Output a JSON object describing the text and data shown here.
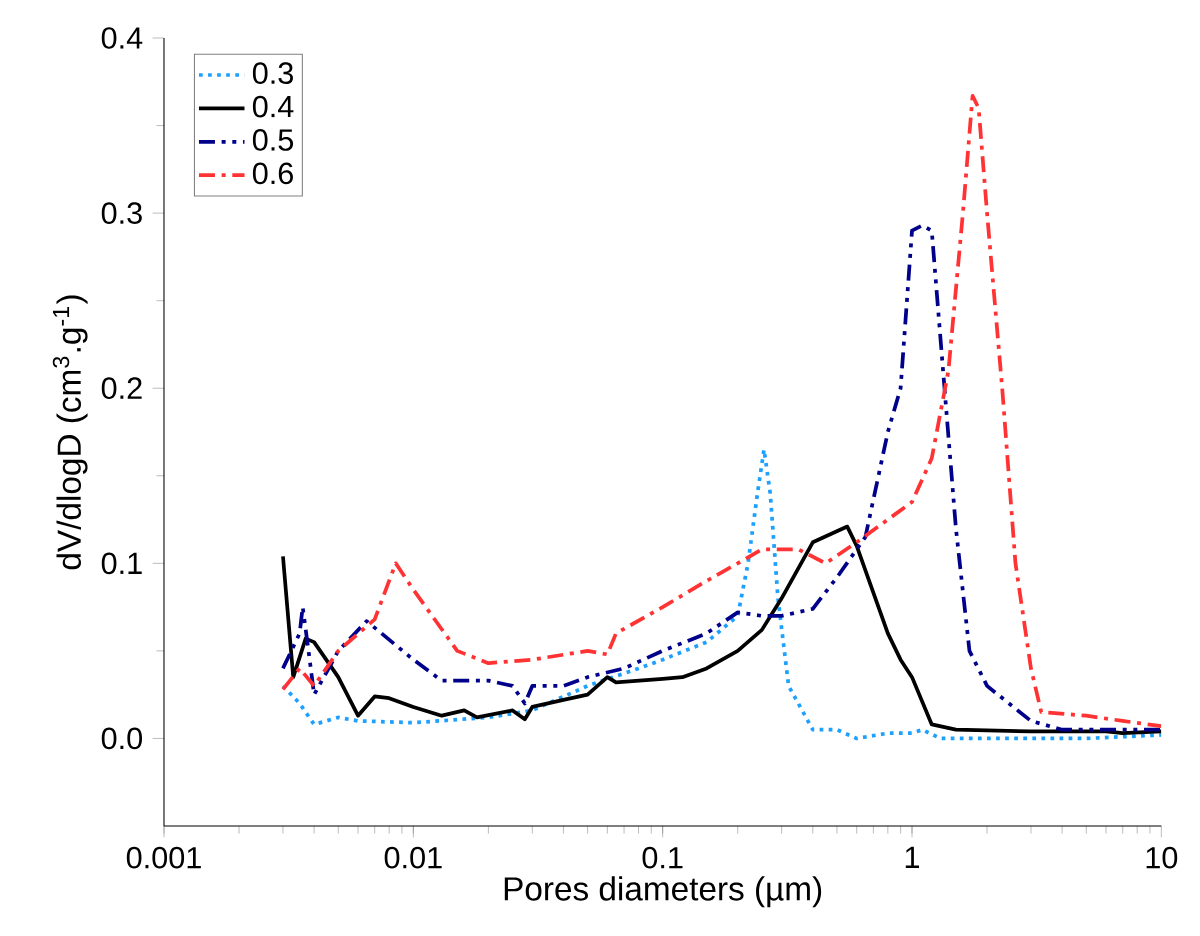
{
  "chart_data": {
    "type": "line",
    "xlabel": "Pores diameters (µm)",
    "ylabel": "dV/dlogD (cm$^{3}$.g$^{-1}$)",
    "log": "x",
    "xlim": [
      0.001,
      10
    ],
    "xticks": [
      0.001,
      0.01,
      0.1,
      1,
      10
    ],
    "ylim": [
      -0.05,
      0.4
    ],
    "yticks": [
      {
        "value": 0,
        "label": "0.0"
      },
      0.1,
      0.2,
      0.3,
      0.4
    ],
    "grid": false,
    "legend": "top left",
    "marker": "none",
    "series": [
      {
        "name": "0.3",
        "color": "#1ea0ff",
        "line_style": "dotted",
        "x": [
          0.003,
          0.0035,
          0.004,
          0.005,
          0.006,
          0.01,
          0.02,
          0.03,
          0.05,
          0.08,
          0.1,
          0.15,
          0.2,
          0.22,
          0.24,
          0.255,
          0.27,
          0.29,
          0.32,
          0.4,
          0.5,
          0.6,
          0.8,
          1.0,
          1.1,
          1.3,
          2,
          5,
          10
        ],
        "values": [
          0.03,
          0.02,
          0.008,
          0.012,
          0.01,
          0.009,
          0.012,
          0.016,
          0.03,
          0.04,
          0.045,
          0.055,
          0.07,
          0.1,
          0.14,
          0.165,
          0.14,
          0.08,
          0.03,
          0.005,
          0.005,
          0.0,
          0.003,
          0.003,
          0.005,
          0.0,
          0.0,
          0.0,
          0.002
        ]
      },
      {
        "name": "0.4",
        "color": "#000000",
        "line_style": "solid",
        "x": [
          0.003,
          0.0033,
          0.0037,
          0.004,
          0.005,
          0.006,
          0.007,
          0.008,
          0.01,
          0.013,
          0.016,
          0.018,
          0.025,
          0.028,
          0.03,
          0.04,
          0.05,
          0.06,
          0.065,
          0.1,
          0.12,
          0.15,
          0.2,
          0.25,
          0.3,
          0.4,
          0.55,
          0.6,
          0.8,
          0.9,
          1.0,
          1.2,
          1.5,
          3,
          6,
          7,
          10
        ],
        "values": [
          0.104,
          0.035,
          0.057,
          0.055,
          0.035,
          0.013,
          0.024,
          0.023,
          0.018,
          0.013,
          0.016,
          0.012,
          0.016,
          0.011,
          0.018,
          0.022,
          0.025,
          0.035,
          0.032,
          0.034,
          0.035,
          0.04,
          0.05,
          0.062,
          0.08,
          0.112,
          0.121,
          0.11,
          0.06,
          0.045,
          0.035,
          0.008,
          0.005,
          0.004,
          0.004,
          0.003,
          0.004
        ]
      },
      {
        "name": "0.5",
        "color": "#00008b",
        "line_style": "dashdotdotted",
        "x": [
          0.003,
          0.0035,
          0.0036,
          0.0038,
          0.004,
          0.005,
          0.0065,
          0.01,
          0.013,
          0.02,
          0.025,
          0.028,
          0.03,
          0.04,
          0.05,
          0.07,
          0.1,
          0.15,
          0.2,
          0.25,
          0.3,
          0.4,
          0.5,
          0.65,
          0.8,
          0.9,
          1.0,
          1.1,
          1.2,
          1.35,
          1.5,
          1.7,
          2,
          3,
          4,
          6,
          10
        ],
        "values": [
          0.04,
          0.06,
          0.075,
          0.05,
          0.025,
          0.05,
          0.067,
          0.045,
          0.033,
          0.033,
          0.03,
          0.02,
          0.03,
          0.03,
          0.035,
          0.04,
          0.05,
          0.06,
          0.072,
          0.07,
          0.07,
          0.074,
          0.092,
          0.115,
          0.175,
          0.2,
          0.29,
          0.293,
          0.29,
          0.2,
          0.12,
          0.05,
          0.03,
          0.01,
          0.005,
          0.005,
          0.005
        ]
      },
      {
        "name": "0.6",
        "color": "#ff3333",
        "line_style": "dashdotted",
        "x": [
          0.003,
          0.0035,
          0.004,
          0.005,
          0.007,
          0.0085,
          0.01,
          0.015,
          0.02,
          0.03,
          0.05,
          0.06,
          0.065,
          0.1,
          0.15,
          0.2,
          0.25,
          0.35,
          0.45,
          0.6,
          0.8,
          1.0,
          1.2,
          1.4,
          1.6,
          1.75,
          1.85,
          2.0,
          2.3,
          2.6,
          3,
          3.3,
          5,
          7,
          10
        ],
        "values": [
          0.028,
          0.04,
          0.03,
          0.05,
          0.068,
          0.1,
          0.085,
          0.05,
          0.043,
          0.045,
          0.05,
          0.048,
          0.06,
          0.075,
          0.09,
          0.1,
          0.108,
          0.108,
          0.1,
          0.112,
          0.125,
          0.135,
          0.16,
          0.21,
          0.3,
          0.367,
          0.36,
          0.3,
          0.2,
          0.1,
          0.04,
          0.015,
          0.013,
          0.01,
          0.007
        ]
      }
    ]
  }
}
